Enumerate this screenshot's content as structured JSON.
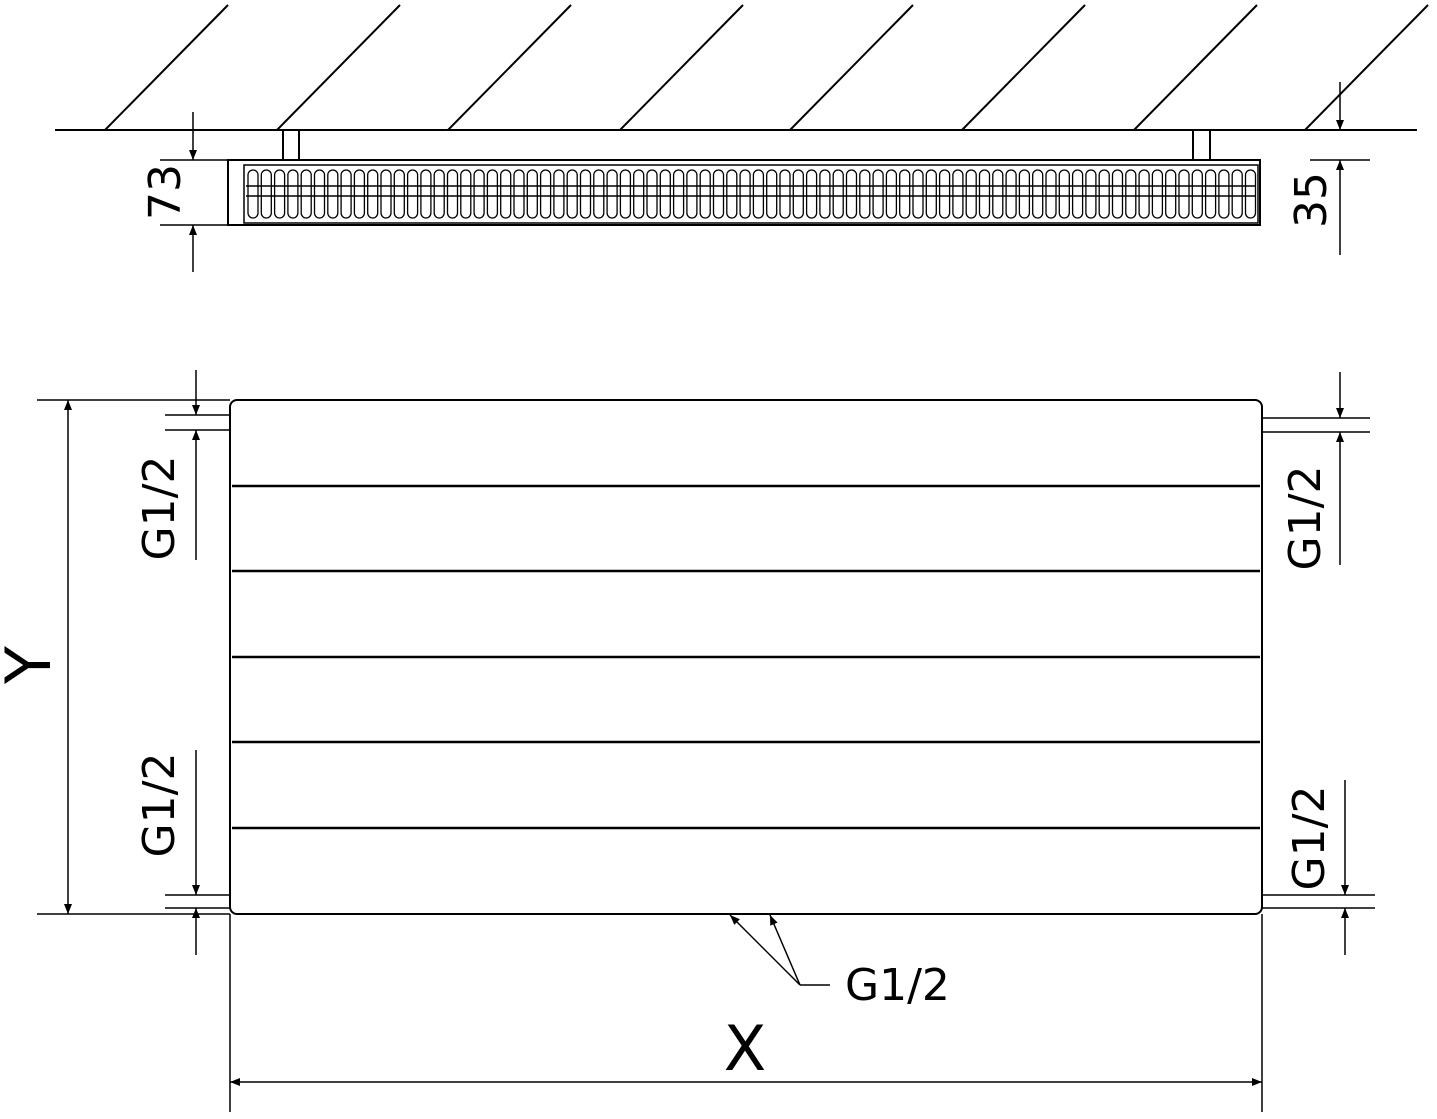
{
  "top_view": {
    "height_label": "73",
    "wall_gap_label": "35"
  },
  "front_view": {
    "width_label": "X",
    "height_label": "Y",
    "connection_left_top": "G1/2",
    "connection_left_bottom": "G1/2",
    "connection_right_top": "G1/2",
    "connection_right_bottom": "G1/2",
    "connection_bottom": "G1/2"
  },
  "colors": {
    "line": "#000000",
    "background": "#ffffff"
  }
}
